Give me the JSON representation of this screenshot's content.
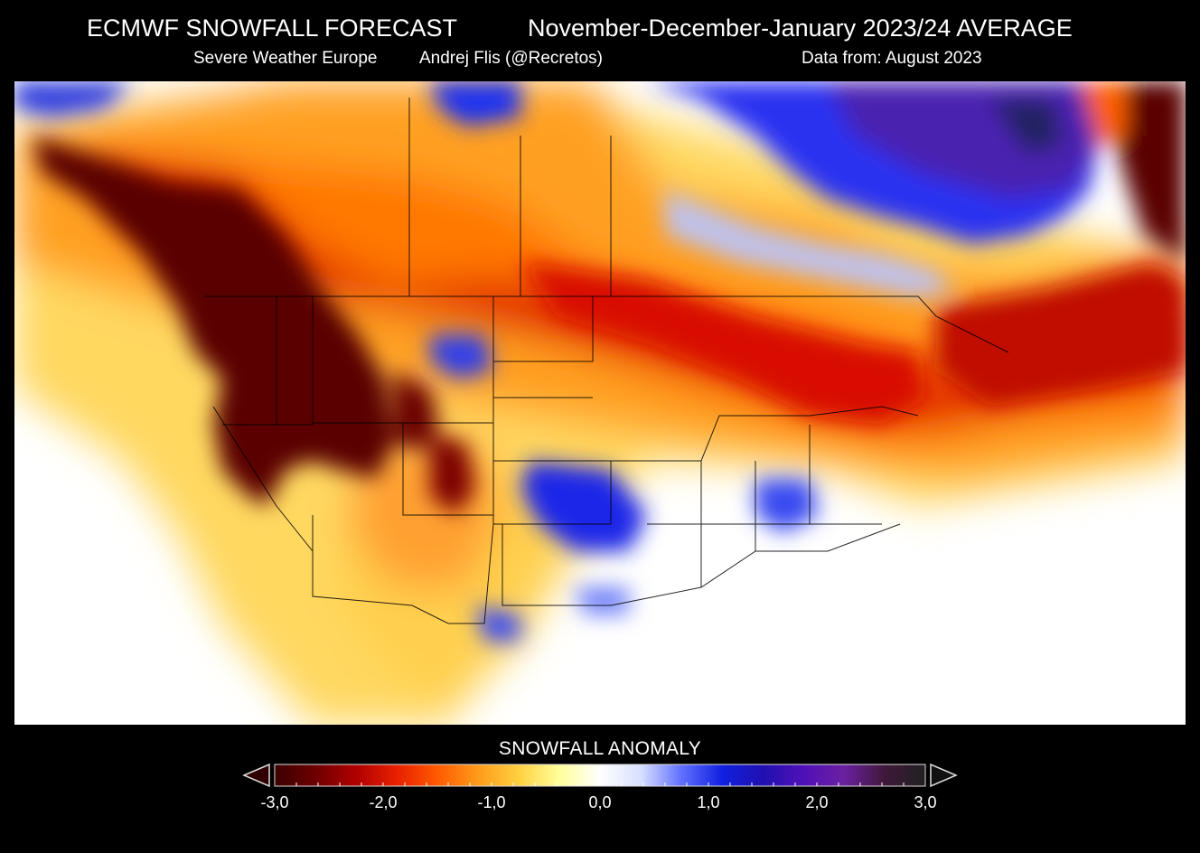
{
  "title_left": "ECMWF SNOWFALL FORECAST",
  "title_right": "November-December-January 2023/24 AVERAGE",
  "subtitle_site": "Severe Weather Europe",
  "subtitle_author": "Andrej Flis (@Recretos)",
  "subtitle_data": "Data from: August 2023",
  "legend": {
    "title": "SNOWFALL ANOMALY",
    "ticks": [
      "-3,0",
      "-2,0",
      "-1,0",
      "0,0",
      "1,0",
      "2,0",
      "3,0"
    ],
    "colors": [
      "#3a0000",
      "#6e0000",
      "#b00000",
      "#e82000",
      "#ff5a00",
      "#ff9a1a",
      "#ffd040",
      "#ffff9a",
      "#ffffff",
      "#d8e0ff",
      "#6070ff",
      "#1020e0",
      "#2010b0",
      "#5010b8",
      "#6a20a0",
      "#40183a",
      "#202020"
    ]
  },
  "map_colors": {
    "dark_red": "#5a0000",
    "red": "#d01000",
    "orange": "#ff7000",
    "light_orange": "#ffa020",
    "yellow": "#ffe070",
    "light_blue": "#b8c4ff",
    "blue": "#2a30f0",
    "purple": "#4a20b0"
  }
}
